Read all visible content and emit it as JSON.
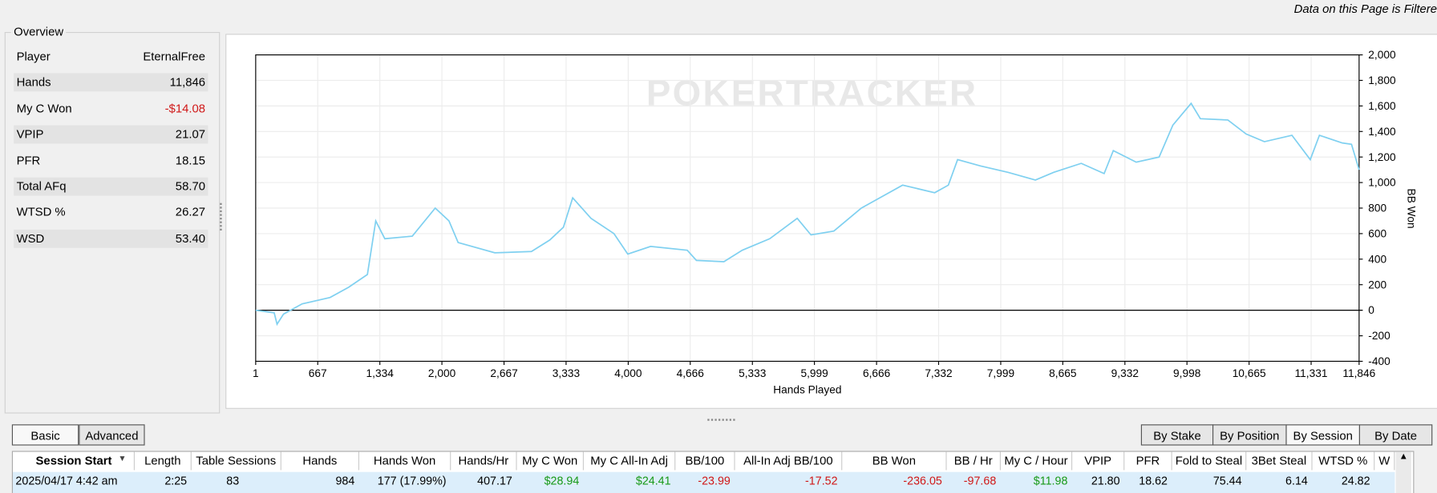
{
  "header": {
    "filter_notice": "Data on this Page is Filtere"
  },
  "overview": {
    "title": "Overview",
    "rows": [
      [
        "Player",
        "EternalFree"
      ],
      [
        "Hands",
        "11,846"
      ],
      [
        "My C Won",
        "-$14.08"
      ],
      [
        "VPIP",
        "21.07"
      ],
      [
        "PFR",
        "18.15"
      ],
      [
        "Total AFq",
        "58.70"
      ],
      [
        "WTSD %",
        "26.27"
      ],
      [
        "WSD",
        "53.40"
      ]
    ]
  },
  "chart": {
    "type": "line",
    "watermark": "POKERTRACKER",
    "xlabel": "Hands Played",
    "ylabel": "BB Won",
    "color": "#7fd0f0",
    "grid": true,
    "x": [
      1,
      200,
      230,
      300,
      500,
      800,
      1000,
      1200,
      1290,
      1387,
      1682,
      1928,
      2076,
      2174,
      2568,
      2961,
      3158,
      3305,
      3404,
      3601,
      3847,
      3995,
      4240,
      4634,
      4732,
      5027,
      5224,
      5519,
      5814,
      5962,
      6208,
      6503,
      6700,
      6946,
      7290,
      7437,
      7536,
      7781,
      8076,
      8371,
      8568,
      8863,
      9109,
      9207,
      9453,
      9699,
      9847,
      10043,
      10142,
      10437,
      10633,
      10830,
      11125,
      11322,
      11420,
      11666,
      11764,
      11846
    ],
    "values": [
      0,
      -20,
      -110,
      -30,
      50,
      100,
      180,
      280,
      700,
      560,
      580,
      800,
      700,
      530,
      450,
      460,
      550,
      650,
      880,
      720,
      600,
      440,
      500,
      470,
      390,
      380,
      470,
      560,
      720,
      590,
      620,
      800,
      880,
      980,
      920,
      980,
      1180,
      1130,
      1080,
      1020,
      1080,
      1150,
      1070,
      1250,
      1160,
      1200,
      1450,
      1620,
      1500,
      1490,
      1380,
      1320,
      1370,
      1180,
      1370,
      1310,
      1300,
      1100
    ],
    "xlim": [
      1,
      11846
    ],
    "ylim": [
      -400,
      2000
    ],
    "xticks": [
      1,
      667,
      {
        "value": 1334,
        "label": "1,334"
      },
      {
        "value": 2000,
        "label": "2,000"
      },
      {
        "value": 2667,
        "label": "2,667"
      },
      {
        "value": 3333,
        "label": "3,333"
      },
      {
        "value": 4000,
        "label": "4,000"
      },
      {
        "value": 4666,
        "label": "4,666"
      },
      {
        "value": 5333,
        "label": "5,333"
      },
      {
        "value": 5999,
        "label": "5,999"
      },
      {
        "value": 6666,
        "label": "6,666"
      },
      {
        "value": 7332,
        "label": "7,332"
      },
      {
        "value": 7999,
        "label": "7,999"
      },
      {
        "value": 8665,
        "label": "8,665"
      },
      {
        "value": 9332,
        "label": "9,332"
      },
      {
        "value": 9998,
        "label": "9,998"
      },
      {
        "value": 10665,
        "label": "10,665"
      },
      {
        "value": 11331,
        "label": "11,331"
      },
      {
        "value": 11846,
        "label": "11,846"
      }
    ],
    "yticks": [
      -400,
      -200,
      0,
      200,
      400,
      600,
      800,
      {
        "value": 1000,
        "label": "1,000"
      },
      {
        "value": 1200,
        "label": "1,200"
      },
      {
        "value": 1400,
        "label": "1,400"
      },
      {
        "value": 1600,
        "label": "1,600"
      },
      {
        "value": 1800,
        "label": "1,800"
      },
      {
        "value": 2000,
        "label": "2,000"
      }
    ]
  },
  "view_buttons": [
    "Basic",
    "Advanced"
  ],
  "group_buttons": [
    "By Stake",
    "By Position",
    "By Session",
    "By Date"
  ],
  "selected_group": 2,
  "sessions": {
    "columns": [
      "Session Start",
      "Length",
      "Table Sessions",
      "Hands",
      "Hands Won",
      "Hands/Hr",
      "My C Won",
      "My C All-In Adj",
      "BB/100",
      "All-In Adj BB/100",
      "BB Won",
      "BB / Hr",
      "My C / Hour",
      "VPIP",
      "PFR",
      "Fold to Steal",
      "3Bet Steal",
      "WTSD %",
      "W"
    ],
    "rows": [
      [
        "2025/04/17  4:42 am",
        "2:25",
        "83",
        "984",
        "177 (17.99%)",
        "407.17",
        "$28.94",
        "$24.41",
        "-23.99",
        "-17.52",
        "-236.05",
        "-97.68",
        "$11.98",
        "21.80",
        "18.62",
        "75.44",
        "6.14",
        "24.82"
      ]
    ]
  }
}
